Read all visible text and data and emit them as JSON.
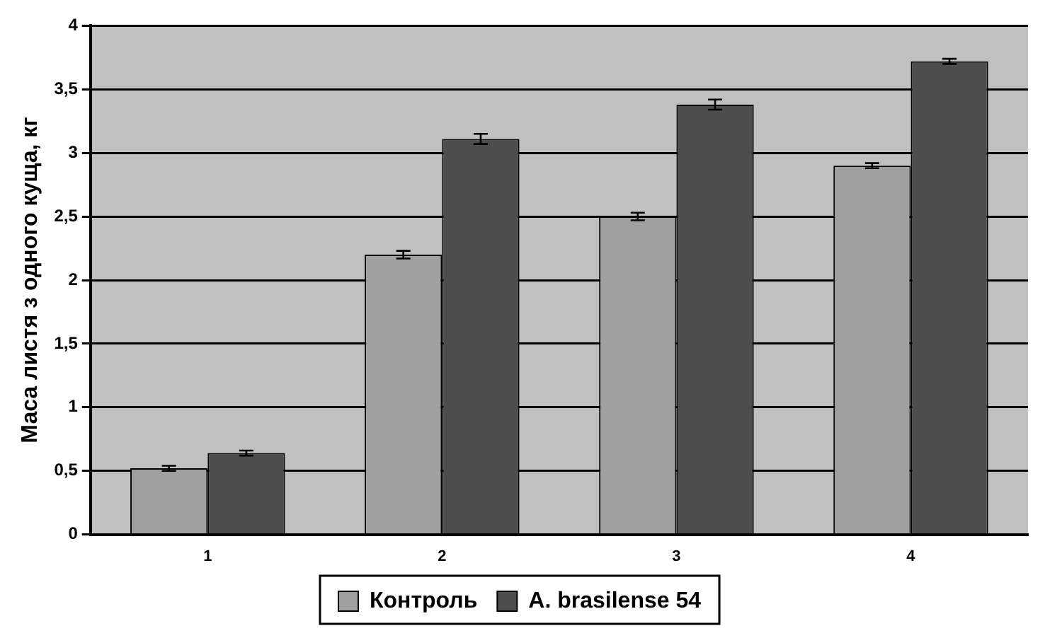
{
  "chart_data": {
    "type": "bar",
    "ylabel": "Маса листя з одного куща, кг",
    "categories": [
      "1",
      "2",
      "3",
      "4"
    ],
    "series": [
      {
        "name": "Контроль",
        "color": "#a0a0a0",
        "values": [
          0.52,
          2.2,
          2.5,
          2.9
        ],
        "errors": [
          0.02,
          0.03,
          0.03,
          0.02
        ]
      },
      {
        "name": "A. brasilense 54",
        "color": "#4d4d4d",
        "values": [
          0.64,
          3.11,
          3.38,
          3.72
        ],
        "errors": [
          0.02,
          0.04,
          0.04,
          0.02
        ]
      }
    ],
    "ylim": [
      0,
      4
    ],
    "yticks": [
      0,
      {
        "value": 0.5,
        "label": "0,5"
      },
      1,
      {
        "value": 1.5,
        "label": "1,5"
      },
      2,
      {
        "value": 2.5,
        "label": "2,5"
      },
      3,
      {
        "value": 3.5,
        "label": "3,5"
      },
      4
    ],
    "grid": "y",
    "legend": "bottom"
  }
}
